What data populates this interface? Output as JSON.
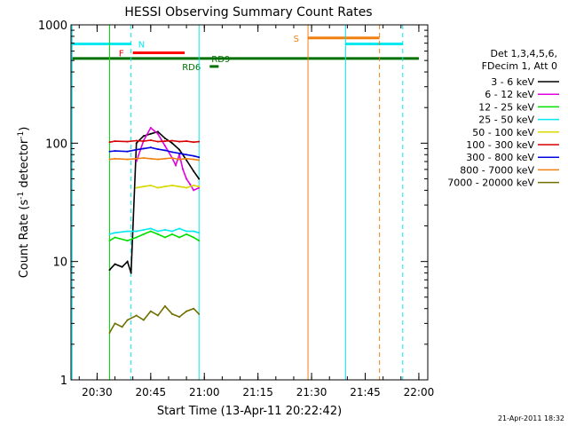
{
  "chart_data": {
    "type": "line",
    "title": "HESSI Observing Summary Count Rates",
    "xlabel": "Start Time (13-Apr-11 20:22:42)",
    "ylabel_main": "Count Rate (s",
    "ylabel_sup1": "-1",
    "ylabel_mid": " detector",
    "ylabel_sup2": "-1",
    "ylabel_end": ")",
    "yscale": "log",
    "xlim": [
      "20:22:42",
      "22:02:30"
    ],
    "ylim": [
      1,
      1000
    ],
    "x_ticks": [
      "20:30",
      "20:45",
      "21:00",
      "21:15",
      "21:30",
      "21:45",
      "22:00"
    ],
    "y_ticks": [
      {
        "value": 1,
        "label": "1"
      },
      {
        "value": 10,
        "label": "10"
      },
      {
        "value": 100,
        "label": "100"
      },
      {
        "value": 1000,
        "label": "1000"
      }
    ],
    "legend": {
      "position": "right",
      "header1": "Det 1,3,4,5,6,",
      "header2": "FDecim 1, Att 0",
      "entries": [
        {
          "label": "3 - 6 keV",
          "color": "#000000"
        },
        {
          "label": "6 - 12 keV",
          "color": "#e000e0"
        },
        {
          "label": "12 - 25 keV",
          "color": "#00e000"
        },
        {
          "label": "25 - 50 keV",
          "color": "#00e8f0"
        },
        {
          "label": "50 - 100 keV",
          "color": "#d8d800"
        },
        {
          "label": "100 - 300 keV",
          "color": "#d80000"
        },
        {
          "label": "300 - 800 keV",
          "color": "#0000e0"
        },
        {
          "label": "800 - 7000 keV",
          "color": "#f08010"
        },
        {
          "label": "7000 - 20000 keV",
          "color": "#707000"
        }
      ]
    },
    "data_window": {
      "start": "20:41:00",
      "end": "20:58:30"
    },
    "series": [
      {
        "name": "3 - 6 keV",
        "color": "#000000",
        "x": [
          "20:33:30",
          "20:35:00",
          "20:37:00",
          "20:38:30",
          "20:39:30",
          "20:41:00",
          "20:43:00",
          "20:45:00",
          "20:47:00",
          "20:49:00",
          "20:51:00",
          "20:53:00",
          "20:55:00",
          "20:57:00",
          "20:58:30"
        ],
        "y": [
          8.5,
          9.5,
          9.0,
          10.0,
          8.0,
          100,
          115,
          120,
          125,
          110,
          100,
          88,
          72,
          58,
          50
        ]
      },
      {
        "name": "6 - 12 keV",
        "color": "#e000e0",
        "x": [
          "20:41:00",
          "20:43:00",
          "20:45:00",
          "20:47:00",
          "20:49:00",
          "20:51:00",
          "20:52:00",
          "20:53:00",
          "20:54:00",
          "20:55:00",
          "20:56:00",
          "20:57:00",
          "20:58:30"
        ],
        "y": [
          70,
          105,
          135,
          120,
          95,
          75,
          65,
          80,
          60,
          50,
          45,
          40,
          42
        ]
      },
      {
        "name": "12 - 25 keV",
        "color": "#00e000",
        "x": [
          "20:33:30",
          "20:35:00",
          "20:38:30",
          "20:41:00",
          "20:43:00",
          "20:45:00",
          "20:47:00",
          "20:49:00",
          "20:51:00",
          "20:53:00",
          "20:55:00",
          "20:57:00",
          "20:58:30"
        ],
        "y": [
          15,
          16,
          15,
          16,
          17,
          18,
          17,
          16,
          17,
          16,
          17,
          16,
          15
        ]
      },
      {
        "name": "25 - 50 keV",
        "color": "#00e8f0",
        "x": [
          "20:33:30",
          "20:35:00",
          "20:38:30",
          "20:41:00",
          "20:43:00",
          "20:45:00",
          "20:47:00",
          "20:49:00",
          "20:51:00",
          "20:53:00",
          "20:55:00",
          "20:57:00",
          "20:58:30"
        ],
        "y": [
          17,
          17.5,
          18,
          18,
          18.5,
          19,
          18,
          18.5,
          18,
          19,
          18,
          18,
          17.5
        ]
      },
      {
        "name": "50 - 100 keV",
        "color": "#d8d800",
        "x": [
          "20:41:00",
          "20:43:00",
          "20:45:00",
          "20:47:00",
          "20:49:00",
          "20:51:00",
          "20:53:00",
          "20:55:00",
          "20:57:00",
          "20:58:30"
        ],
        "y": [
          42,
          43,
          44,
          42,
          43,
          44,
          43,
          42,
          44,
          43
        ]
      },
      {
        "name": "100 - 300 keV",
        "color": "#d80000",
        "x": [
          "20:33:30",
          "20:35:00",
          "20:38:30",
          "20:41:00",
          "20:43:00",
          "20:45:00",
          "20:47:00",
          "20:49:00",
          "20:51:00",
          "20:53:00",
          "20:55:00",
          "20:57:00",
          "20:58:30"
        ],
        "y": [
          102,
          104,
          103,
          105,
          104,
          106,
          103,
          104,
          105,
          103,
          104,
          102,
          103
        ]
      },
      {
        "name": "300 - 800 keV",
        "color": "#0000e0",
        "x": [
          "20:33:30",
          "20:35:00",
          "20:38:30",
          "20:41:00",
          "20:43:00",
          "20:45:00",
          "20:47:00",
          "20:49:00",
          "20:51:00",
          "20:53:00",
          "20:55:00",
          "20:57:00",
          "20:58:30"
        ],
        "y": [
          85,
          86,
          85,
          88,
          90,
          92,
          89,
          87,
          84,
          82,
          80,
          78,
          76
        ]
      },
      {
        "name": "800 - 7000 keV",
        "color": "#f08010",
        "x": [
          "20:33:30",
          "20:35:00",
          "20:38:30",
          "20:41:00",
          "20:43:00",
          "20:45:00",
          "20:47:00",
          "20:49:00",
          "20:51:00",
          "20:53:00",
          "20:55:00",
          "20:57:00",
          "20:58:30"
        ],
        "y": [
          73,
          74,
          73,
          74,
          75,
          74,
          73,
          74,
          75,
          73,
          74,
          73,
          72
        ]
      },
      {
        "name": "7000 - 20000 keV",
        "color": "#707000",
        "x": [
          "20:33:30",
          "20:35:00",
          "20:37:00",
          "20:38:30",
          "20:41:00",
          "20:43:00",
          "20:45:00",
          "20:47:00",
          "20:49:00",
          "20:51:00",
          "20:53:00",
          "20:55:00",
          "20:57:00",
          "20:58:30"
        ],
        "y": [
          2.5,
          3.0,
          2.8,
          3.2,
          3.5,
          3.2,
          3.8,
          3.5,
          4.2,
          3.6,
          3.4,
          3.8,
          4.0,
          3.6
        ]
      }
    ],
    "vertical_lines": [
      {
        "x": "20:23:00",
        "color": "#00e8f0",
        "style": "solid"
      },
      {
        "x": "20:39:30",
        "color": "#00e8f0",
        "style": "dashed"
      },
      {
        "x": "20:33:30",
        "color": "#00e000",
        "style": "solid"
      },
      {
        "x": "20:58:30",
        "color": "#00e8f0",
        "style": "solid"
      },
      {
        "x": "21:29:00",
        "color": "#f08010",
        "style": "solid"
      },
      {
        "x": "21:39:30",
        "color": "#00e8f0",
        "style": "solid"
      },
      {
        "x": "21:49:00",
        "color": "#f08010",
        "style": "dashed"
      },
      {
        "x": "21:55:30",
        "color": "#00e8f0",
        "style": "dashed"
      }
    ],
    "flag_bars": [
      {
        "label": "N",
        "color": "#00e8f0",
        "value": 690,
        "segments": [
          [
            "20:23:00",
            "20:39:30"
          ],
          [
            "21:39:30",
            "21:55:30"
          ]
        ],
        "label_at": "20:41:00",
        "label_side": "right"
      },
      {
        "label": "F",
        "color": "#ff0000",
        "value": 580,
        "segments": [
          [
            "20:40:00",
            "20:54:30"
          ]
        ],
        "label_at": "20:38:00",
        "label_side": "left"
      },
      {
        "label": "S",
        "color": "#f08010",
        "value": 775,
        "segments": [
          [
            "21:29:00",
            "21:49:00"
          ]
        ],
        "label_at": "21:27:00",
        "label_side": "left"
      },
      {
        "label": "RD9",
        "color": "#007000",
        "value": 520,
        "segments": [
          [
            "20:23:00",
            "22:00:00"
          ]
        ],
        "label_at": "21:01:30",
        "label_side": "right"
      },
      {
        "label": "RD6",
        "color": "#007000",
        "value": 445,
        "segments": [
          [
            "21:01:30",
            "21:04:00"
          ]
        ],
        "label_at": "20:59:30",
        "label_side": "left"
      }
    ]
  },
  "timestamp": "21-Apr-2011 18:32"
}
